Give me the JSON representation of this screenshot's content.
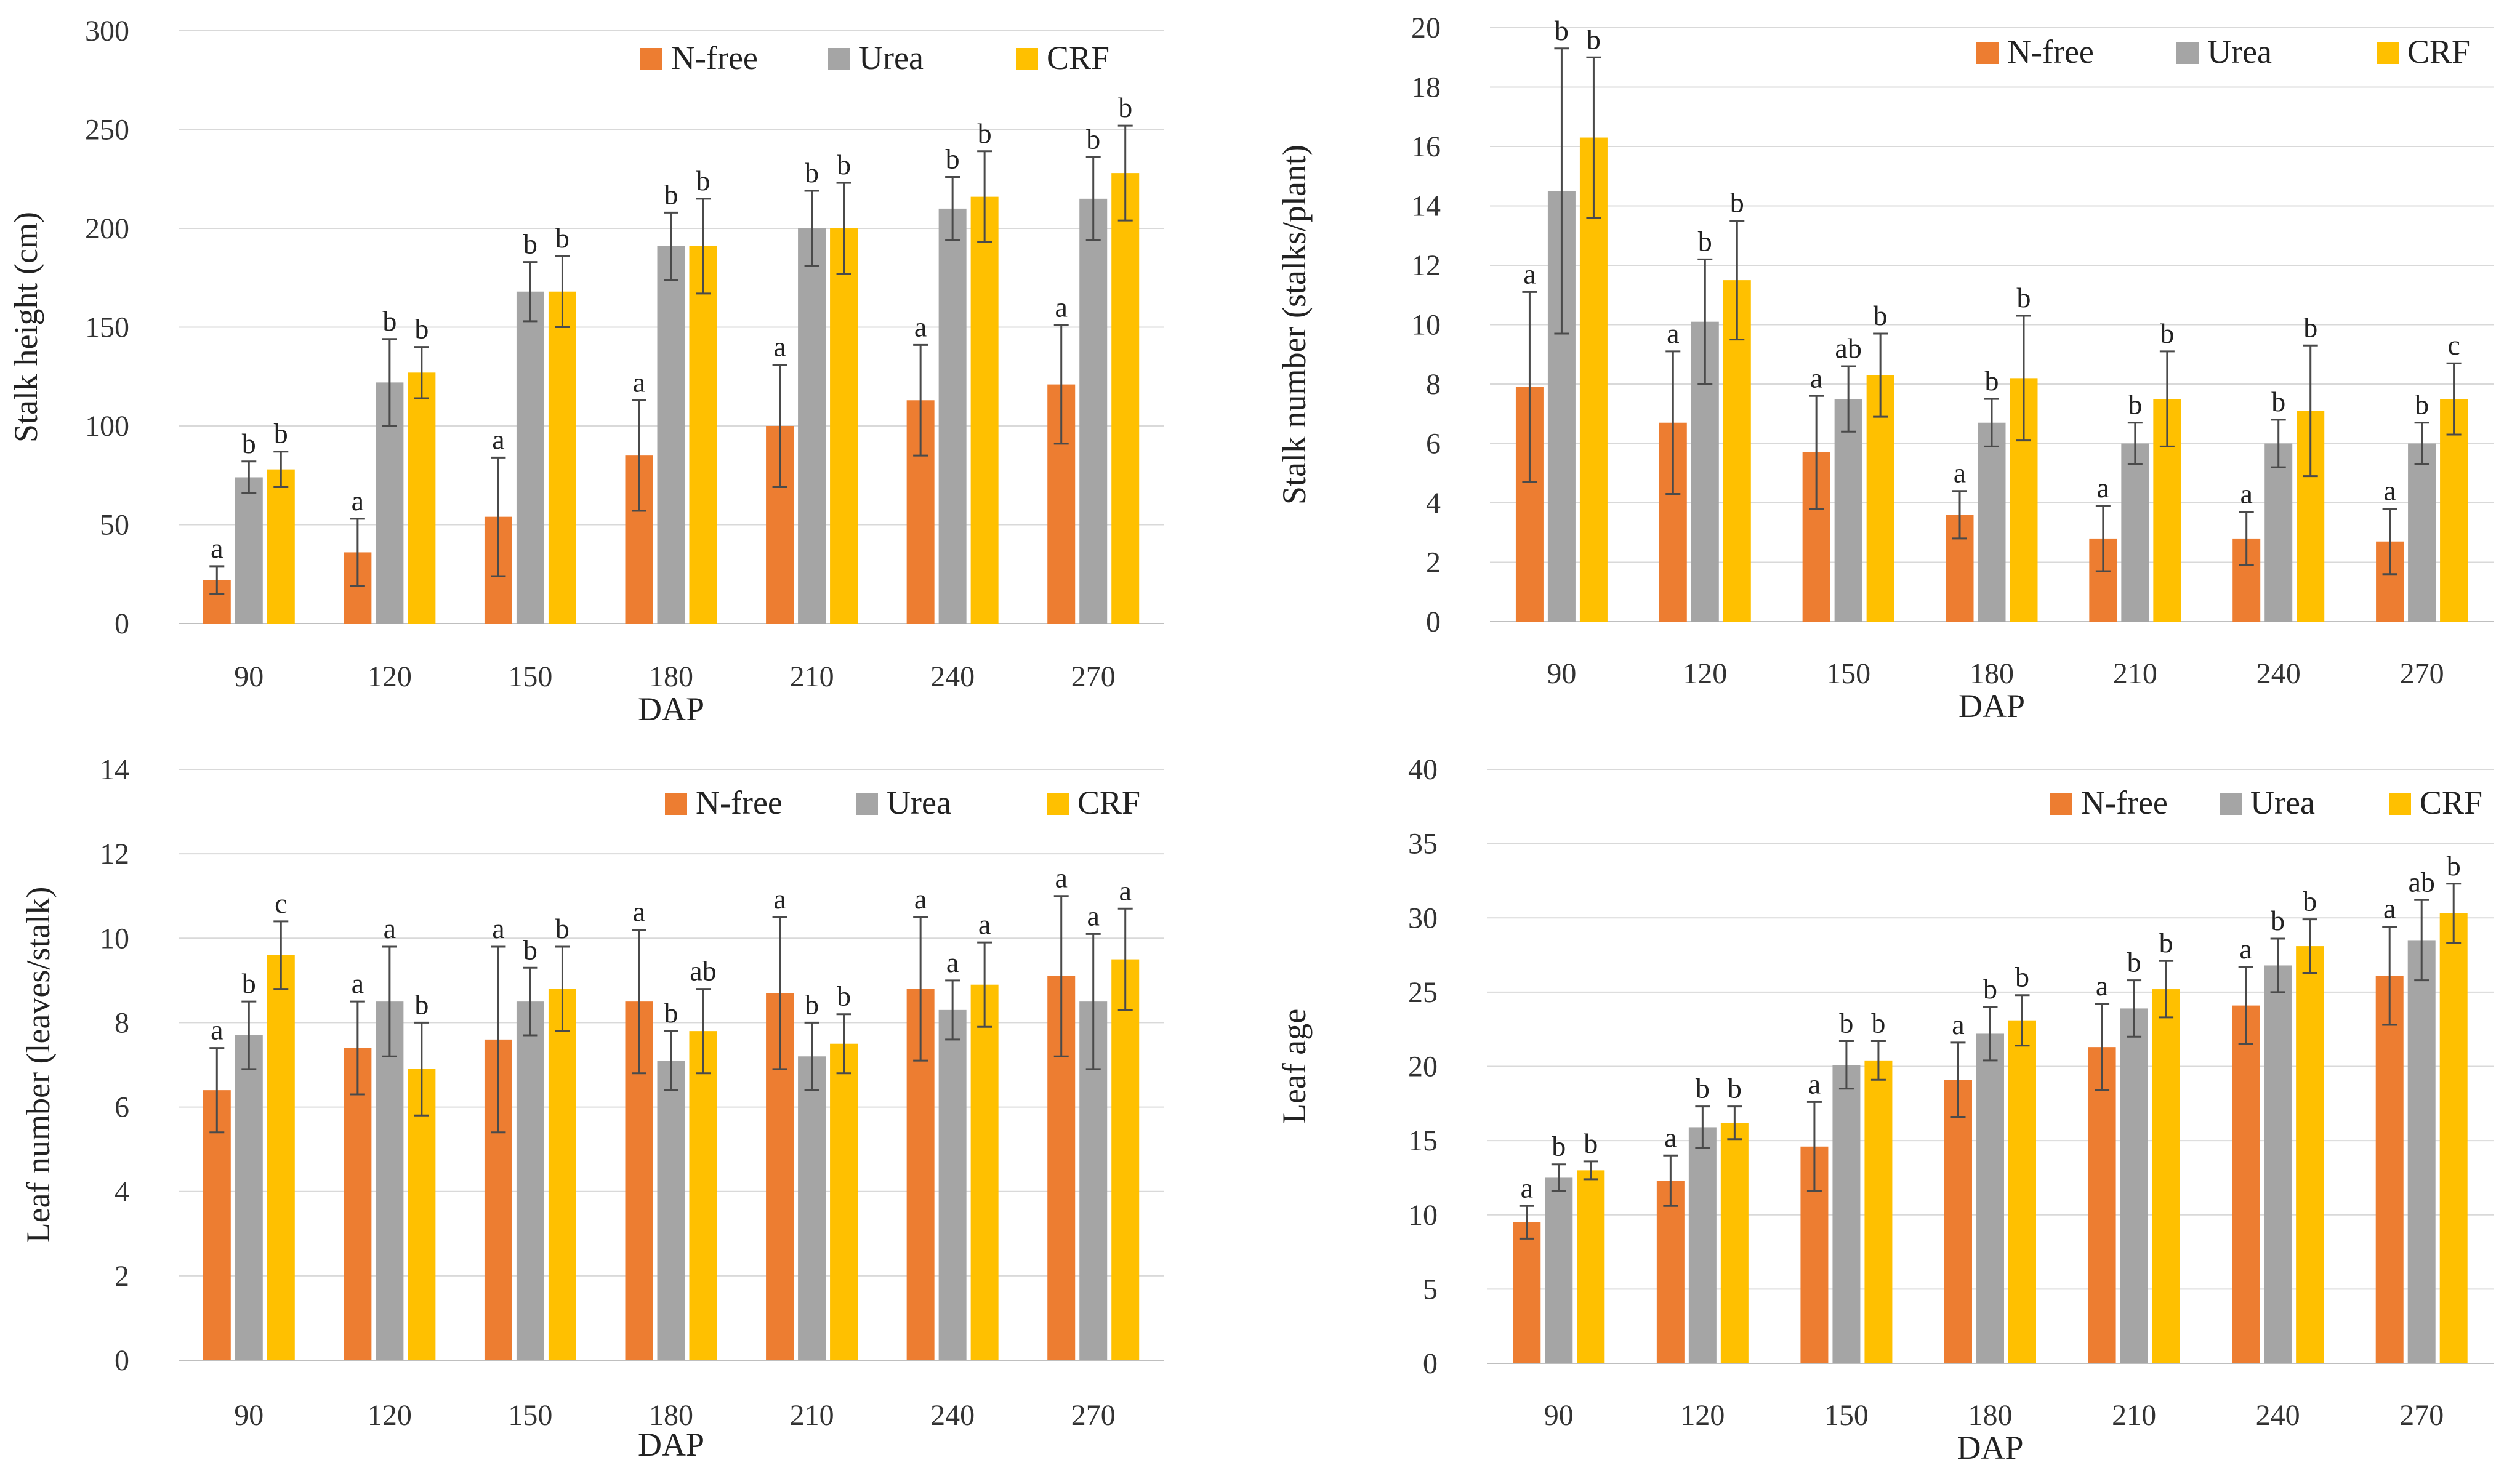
{
  "legend": {
    "series": [
      {
        "name": "N-free",
        "color": "#ED7D31"
      },
      {
        "name": "Urea",
        "color": "#A5A5A5"
      },
      {
        "name": "CRF",
        "color": "#FFC000"
      }
    ]
  },
  "chart_data": [
    {
      "type": "bar",
      "title": "",
      "xlabel": "DAP",
      "ylabel": "Stalk height (cm)",
      "ylim": [
        0,
        300
      ],
      "yticks": [
        0,
        50,
        100,
        150,
        200,
        250,
        300
      ],
      "categories": [
        "90",
        "120",
        "150",
        "180",
        "210",
        "240",
        "270"
      ],
      "legend_position": "top-right",
      "series": [
        {
          "name": "N-free",
          "values": [
            22,
            36,
            54,
            85,
            100,
            113,
            121
          ],
          "errors": [
            7,
            17,
            30,
            28,
            31,
            28,
            30
          ],
          "labels": [
            "a",
            "a",
            "a",
            "a",
            "a",
            "a",
            "a"
          ]
        },
        {
          "name": "Urea",
          "values": [
            74,
            122,
            168,
            191,
            200,
            210,
            215
          ],
          "errors": [
            8,
            22,
            15,
            17,
            19,
            16,
            21
          ],
          "labels": [
            "b",
            "b",
            "b",
            "b",
            "b",
            "b",
            "b"
          ]
        },
        {
          "name": "CRF",
          "values": [
            78,
            127,
            168,
            191,
            200,
            216,
            228
          ],
          "errors": [
            9,
            13,
            18,
            24,
            23,
            23,
            24
          ],
          "labels": [
            "b",
            "b",
            "b",
            "b",
            "b",
            "b",
            "b"
          ]
        }
      ]
    },
    {
      "type": "bar",
      "title": "",
      "xlabel": "DAP",
      "ylabel": "Stalk number (stalks/plant)",
      "ylim": [
        0,
        20
      ],
      "yticks": [
        0,
        2,
        4,
        6,
        8,
        10,
        12,
        14,
        16,
        18,
        20
      ],
      "categories": [
        "90",
        "120",
        "150",
        "180",
        "210",
        "240",
        "270"
      ],
      "legend_position": "top-right",
      "series": [
        {
          "name": "N-free",
          "values": [
            7.9,
            6.7,
            5.7,
            3.6,
            2.8,
            2.8,
            2.7
          ],
          "errors": [
            3.2,
            2.4,
            1.9,
            0.8,
            1.1,
            0.9,
            1.1
          ],
          "labels": [
            "a",
            "a",
            "a",
            "a",
            "a",
            "a",
            "a"
          ]
        },
        {
          "name": "Urea",
          "values": [
            14.5,
            10.1,
            7.5,
            6.7,
            6.0,
            6.0,
            6.0
          ],
          "errors": [
            4.8,
            2.1,
            1.1,
            0.8,
            0.7,
            0.8,
            0.7
          ],
          "labels": [
            "b",
            "b",
            "ab",
            "b",
            "b",
            "b",
            "b"
          ]
        },
        {
          "name": "CRF",
          "values": [
            16.3,
            11.5,
            8.3,
            8.2,
            7.5,
            7.1,
            7.5
          ],
          "errors": [
            2.7,
            2.0,
            1.4,
            2.1,
            1.6,
            2.2,
            1.2
          ],
          "labels": [
            "b",
            "b",
            "b",
            "b",
            "b",
            "b",
            "c"
          ]
        }
      ]
    },
    {
      "type": "bar",
      "title": "",
      "xlabel": "DAP",
      "ylabel": "Leaf number (leaves/stalk)",
      "ylim": [
        0,
        14
      ],
      "yticks": [
        0,
        2,
        4,
        6,
        8,
        10,
        12,
        14
      ],
      "categories": [
        "90",
        "120",
        "150",
        "180",
        "210",
        "240",
        "270"
      ],
      "legend_position": "top-right",
      "series": [
        {
          "name": "N-free",
          "values": [
            6.4,
            7.4,
            7.6,
            8.5,
            8.7,
            8.8,
            9.1
          ],
          "errors": [
            1.0,
            1.1,
            2.2,
            1.7,
            1.8,
            1.7,
            1.9
          ],
          "labels": [
            "a",
            "a",
            "a",
            "a",
            "a",
            "a",
            "a"
          ]
        },
        {
          "name": "Urea",
          "values": [
            7.7,
            8.5,
            8.5,
            7.1,
            7.2,
            8.3,
            8.5
          ],
          "errors": [
            0.8,
            1.3,
            0.8,
            0.7,
            0.8,
            0.7,
            1.6
          ],
          "labels": [
            "b",
            "a",
            "b",
            "b",
            "b",
            "a",
            "a"
          ]
        },
        {
          "name": "CRF",
          "values": [
            9.6,
            6.9,
            8.8,
            7.8,
            7.5,
            8.9,
            9.5
          ],
          "errors": [
            0.8,
            1.1,
            1.0,
            1.0,
            0.7,
            1.0,
            1.2
          ],
          "labels": [
            "c",
            "b",
            "b",
            "ab",
            "b",
            "a",
            "a"
          ]
        }
      ]
    },
    {
      "type": "bar",
      "title": "",
      "xlabel": "DAP",
      "ylabel": "Leaf age",
      "ylim": [
        0,
        40
      ],
      "yticks": [
        0,
        5,
        10,
        15,
        20,
        25,
        30,
        35,
        40
      ],
      "categories": [
        "90",
        "120",
        "150",
        "180",
        "210",
        "240",
        "270"
      ],
      "legend_position": "top-right",
      "series": [
        {
          "name": "N-free",
          "values": [
            9.5,
            12.3,
            14.6,
            19.1,
            21.3,
            24.1,
            26.1
          ],
          "errors": [
            1.1,
            1.7,
            3.0,
            2.5,
            2.9,
            2.6,
            3.3
          ],
          "labels": [
            "a",
            "a",
            "a",
            "a",
            "a",
            "a",
            "a"
          ]
        },
        {
          "name": "Urea",
          "values": [
            12.5,
            15.9,
            20.1,
            22.2,
            23.9,
            26.8,
            28.5
          ],
          "errors": [
            0.9,
            1.4,
            1.6,
            1.8,
            1.9,
            1.8,
            2.7
          ],
          "labels": [
            "b",
            "b",
            "b",
            "b",
            "b",
            "b",
            "ab"
          ]
        },
        {
          "name": "CRF",
          "values": [
            13.0,
            16.2,
            20.4,
            23.1,
            25.2,
            28.1,
            30.3
          ],
          "errors": [
            0.6,
            1.1,
            1.3,
            1.7,
            1.9,
            1.8,
            2.0
          ],
          "labels": [
            "b",
            "b",
            "b",
            "b",
            "b",
            "b",
            "b"
          ]
        }
      ]
    }
  ]
}
